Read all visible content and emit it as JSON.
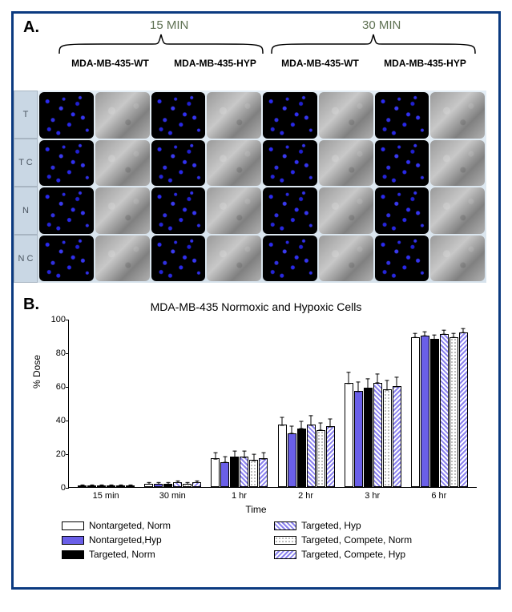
{
  "panelA": {
    "label": "A.",
    "time_color": "#5e7052",
    "time_labels": [
      "15 MIN",
      "30 MIN"
    ],
    "col_headers": [
      "MDA-MB-435-WT",
      "MDA-MB-435-HYP",
      "MDA-MB-435-WT",
      "MDA-MB-435-HYP"
    ],
    "row_labels": [
      "T",
      "T C",
      "N",
      "N C"
    ],
    "row_label_bg": "#c9d7e4",
    "fluor_bg": "#000000",
    "fluor_dot_color": "#2a2af0",
    "bright_bg": "#9a9a9a",
    "grid_rows": 4,
    "grid_cols": 8
  },
  "panelB": {
    "label": "B.",
    "title": "MDA-MB-435 Normoxic and Hypoxic Cells",
    "ylabel": "% Dose",
    "xlabel": "Time",
    "ylim": [
      0,
      100
    ],
    "ytick_step": 20,
    "yticks": [
      0,
      20,
      40,
      60,
      80,
      100
    ],
    "background_color": "#ffffff",
    "axis_color": "#000000",
    "bar_border_color": "#000000",
    "label_fontsize": 12,
    "tick_fontsize": 11,
    "title_fontsize": 14,
    "categories": [
      "15 min",
      "30 min",
      "1 hr",
      "2 hr",
      "3 hr",
      "6 hr"
    ],
    "series": [
      {
        "name": "Nontargeted, Norm",
        "fill": "white",
        "color": "#ffffff"
      },
      {
        "name": "Nontargeted,Hyp",
        "fill": "purple",
        "color": "#6a5fe8"
      },
      {
        "name": "Targeted, Norm",
        "fill": "black",
        "color": "#000000"
      },
      {
        "name": "Targeted, Hyp",
        "fill": "hatch-purple",
        "color": "#8b82ef"
      },
      {
        "name": "Targeted, Compete, Norm",
        "fill": "dots-white",
        "color": "#ffffff"
      },
      {
        "name": "Targeted, Compete, Hyp",
        "fill": "hatch-purple-r",
        "color": "#8b82ef"
      }
    ],
    "values": [
      [
        1,
        1,
        1,
        1,
        1,
        1
      ],
      [
        2,
        2,
        2,
        3,
        2,
        3
      ],
      [
        17,
        15,
        18,
        18,
        16,
        17
      ],
      [
        37,
        32,
        35,
        37,
        34,
        36
      ],
      [
        62,
        57,
        59,
        62,
        58,
        60
      ],
      [
        89,
        90,
        88,
        91,
        89,
        92
      ]
    ],
    "errors": [
      [
        1,
        1,
        1,
        1,
        1,
        1
      ],
      [
        1.5,
        1.5,
        1.5,
        1.5,
        1.5,
        1.5
      ],
      [
        4,
        4,
        4,
        4,
        4,
        4
      ],
      [
        5,
        5,
        5,
        6,
        5,
        5
      ],
      [
        7,
        6,
        6,
        6,
        6,
        6
      ],
      [
        3,
        3,
        3,
        3,
        3,
        3
      ]
    ],
    "legend_order": [
      0,
      3,
      1,
      4,
      2,
      5
    ]
  },
  "frame_border_color": "#0b3a80"
}
